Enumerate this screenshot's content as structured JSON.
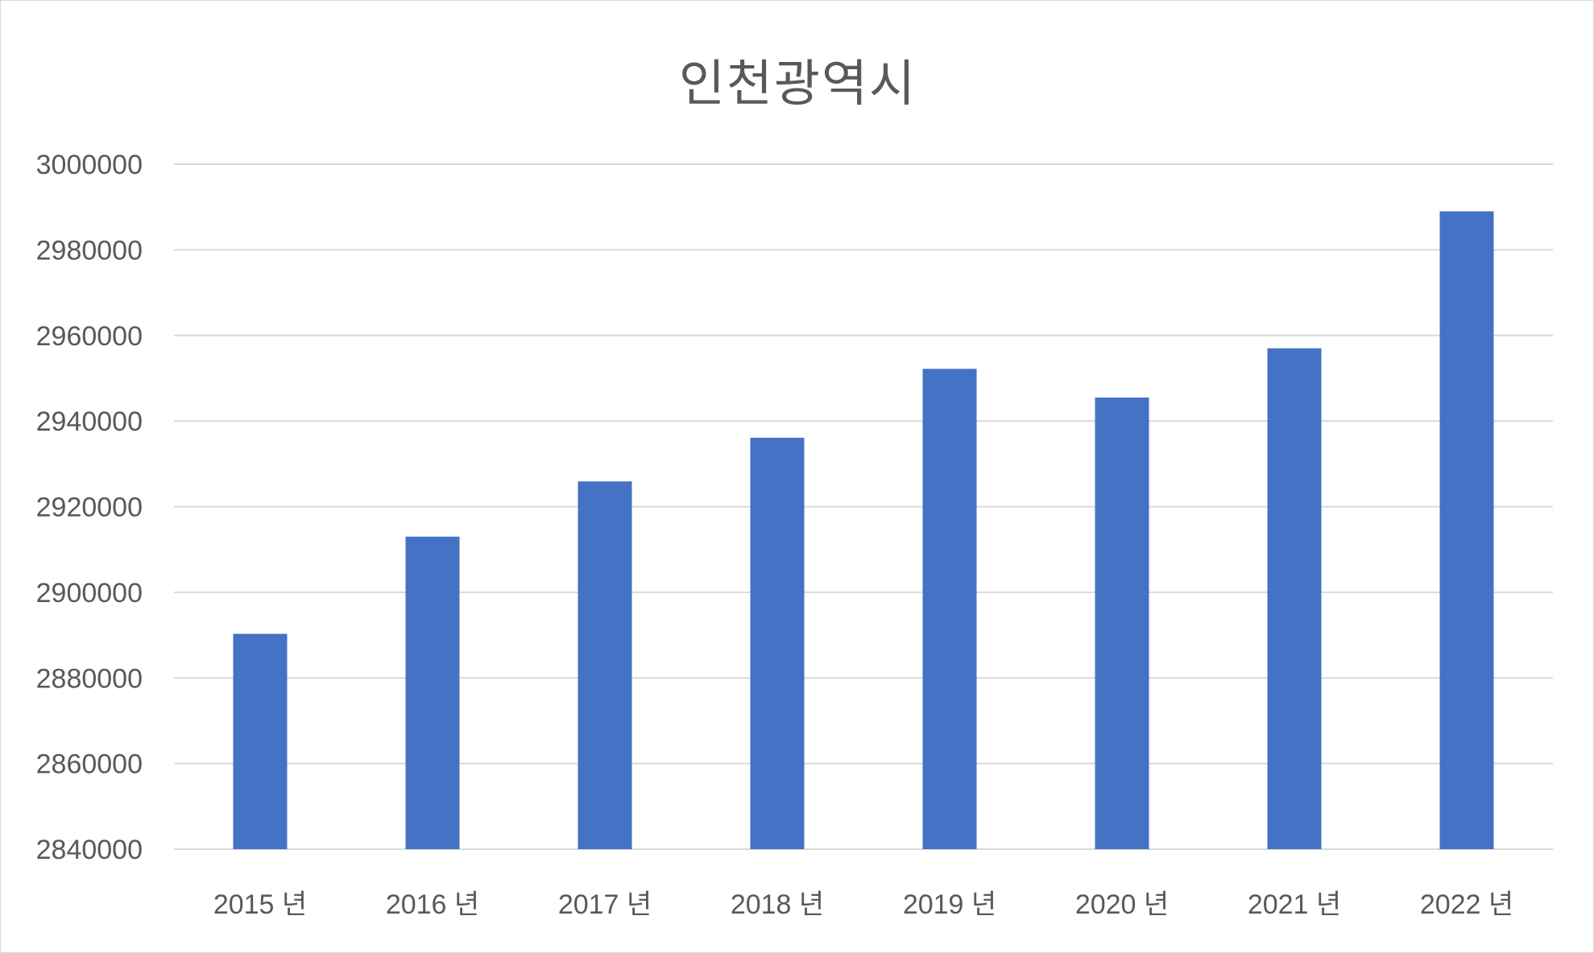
{
  "chart_data": {
    "type": "bar",
    "title": "인천광역시",
    "categories": [
      "2015 년",
      "2016 년",
      "2017 년",
      "2018 년",
      "2019 년",
      "2020 년",
      "2021 년",
      "2022 년"
    ],
    "values": [
      2890300,
      2913000,
      2925900,
      2936100,
      2952200,
      2945500,
      2957000,
      2989000
    ],
    "ylim": [
      2840000,
      3000000
    ],
    "yticks": [
      "2840000",
      "2860000",
      "2880000",
      "2900000",
      "2920000",
      "2940000",
      "2960000",
      "2980000",
      "3000000"
    ],
    "xlabel": "",
    "ylabel": "",
    "grid": true,
    "legend": "none",
    "colors": {
      "bar": "#4472C4",
      "grid": "#d9d9d9",
      "text": "#595959"
    }
  }
}
